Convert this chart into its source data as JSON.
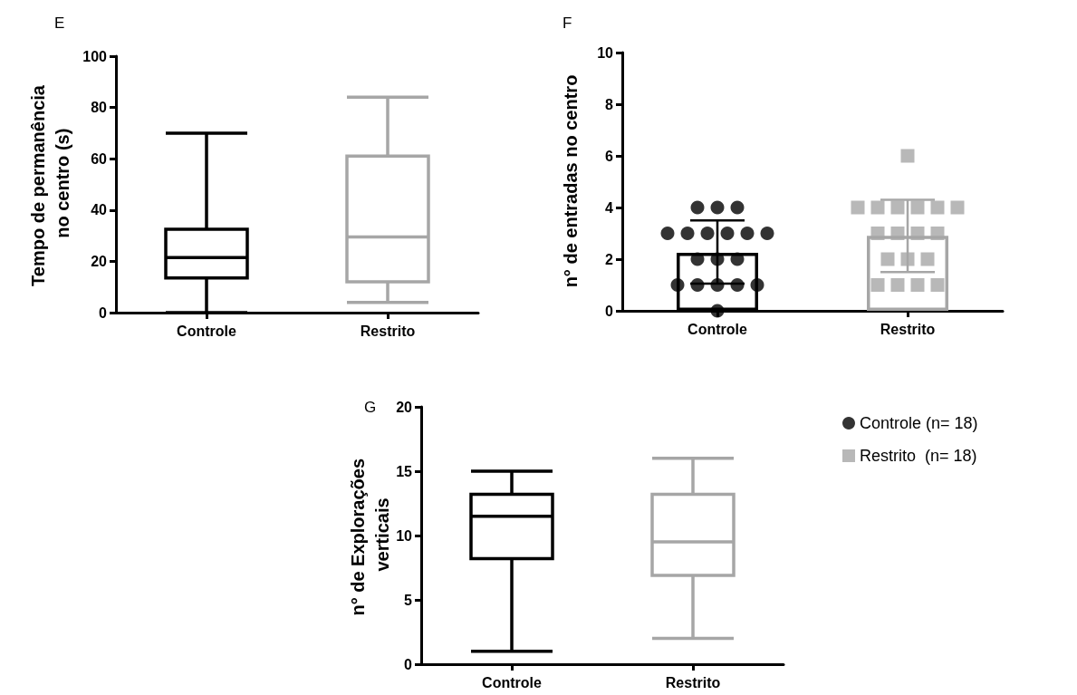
{
  "chart_data": [
    {
      "type": "box",
      "title": "E",
      "ylabel": "Tempo de permanência no centro (s)",
      "categories": [
        "Controle",
        "Restrito"
      ],
      "ylim": [
        0,
        100
      ],
      "yticks": [
        0,
        20,
        40,
        60,
        80,
        100
      ],
      "grid": false,
      "legend": false,
      "series": [
        {
          "color": "#000000",
          "x": [
            "Controle"
          ],
          "boxes": [
            {
              "low": 0,
              "q1": 13.5,
              "median": 21.5,
              "q3": 32.5,
              "high": 70
            }
          ]
        },
        {
          "color": "#a6a6a6",
          "x": [
            "Restrito"
          ],
          "boxes": [
            {
              "low": 4,
              "q1": 12,
              "median": 29.5,
              "q3": 61,
              "high": 84
            }
          ]
        }
      ]
    },
    {
      "type": "bar",
      "title": "F",
      "ylabel": "n° de entradas no centro",
      "categories": [
        "Controle",
        "Restrito"
      ],
      "ylim": [
        0,
        10
      ],
      "yticks": [
        0,
        2,
        4,
        6,
        8,
        10
      ],
      "grid": false,
      "legend": false,
      "series": [
        {
          "type": "bar",
          "values": [
            2.25,
            2.9
          ],
          "colors": [
            "#000000",
            "#a6a6a6"
          ],
          "errors": [
            [
              1.05,
              3.5
            ],
            [
              1.5,
              4.3
            ]
          ]
        },
        {
          "type": "scatter",
          "color": "#000000",
          "marker": "circle",
          "x": [
            "Controle",
            "Controle",
            "Controle",
            "Controle",
            "Controle",
            "Controle",
            "Controle",
            "Controle",
            "Controle",
            "Controle",
            "Controle",
            "Controle",
            "Controle",
            "Controle",
            "Controle",
            "Controle",
            "Controle",
            "Controle"
          ],
          "values": [
            4,
            4,
            4,
            3,
            3,
            3,
            3,
            3,
            3,
            2,
            2,
            2,
            1,
            1,
            1,
            1,
            1,
            0
          ]
        },
        {
          "type": "scatter",
          "color": "#a6a6a6",
          "marker": "square",
          "x": [
            "Restrito",
            "Restrito",
            "Restrito",
            "Restrito",
            "Restrito",
            "Restrito",
            "Restrito",
            "Restrito",
            "Restrito",
            "Restrito",
            "Restrito",
            "Restrito",
            "Restrito",
            "Restrito",
            "Restrito",
            "Restrito",
            "Restrito",
            "Restrito"
          ],
          "values": [
            6,
            4,
            4,
            4,
            4,
            4,
            4,
            3,
            3,
            3,
            3,
            2,
            2,
            2,
            1,
            1,
            1,
            1
          ]
        }
      ]
    },
    {
      "type": "box",
      "title": "G",
      "ylabel": "n° de Explorações verticais",
      "categories": [
        "Controle",
        "Restrito"
      ],
      "ylim": [
        0,
        20
      ],
      "yticks": [
        0,
        5,
        10,
        15,
        20
      ],
      "grid": false,
      "legend": "right",
      "series": [
        {
          "name": "Controle (n= 18)",
          "color": "#000000",
          "marker": "circle",
          "x": [
            "Controle"
          ],
          "boxes": [
            {
              "low": 1,
              "q1": 8.2,
              "median": 11.5,
              "q3": 13.2,
              "high": 15
            }
          ]
        },
        {
          "name": "Restrito  (n= 18)",
          "color": "#a6a6a6",
          "marker": "square",
          "x": [
            "Restrito"
          ],
          "boxes": [
            {
              "low": 2,
              "q1": 6.9,
              "median": 9.5,
              "q3": 13.2,
              "high": 16
            }
          ]
        }
      ]
    }
  ]
}
